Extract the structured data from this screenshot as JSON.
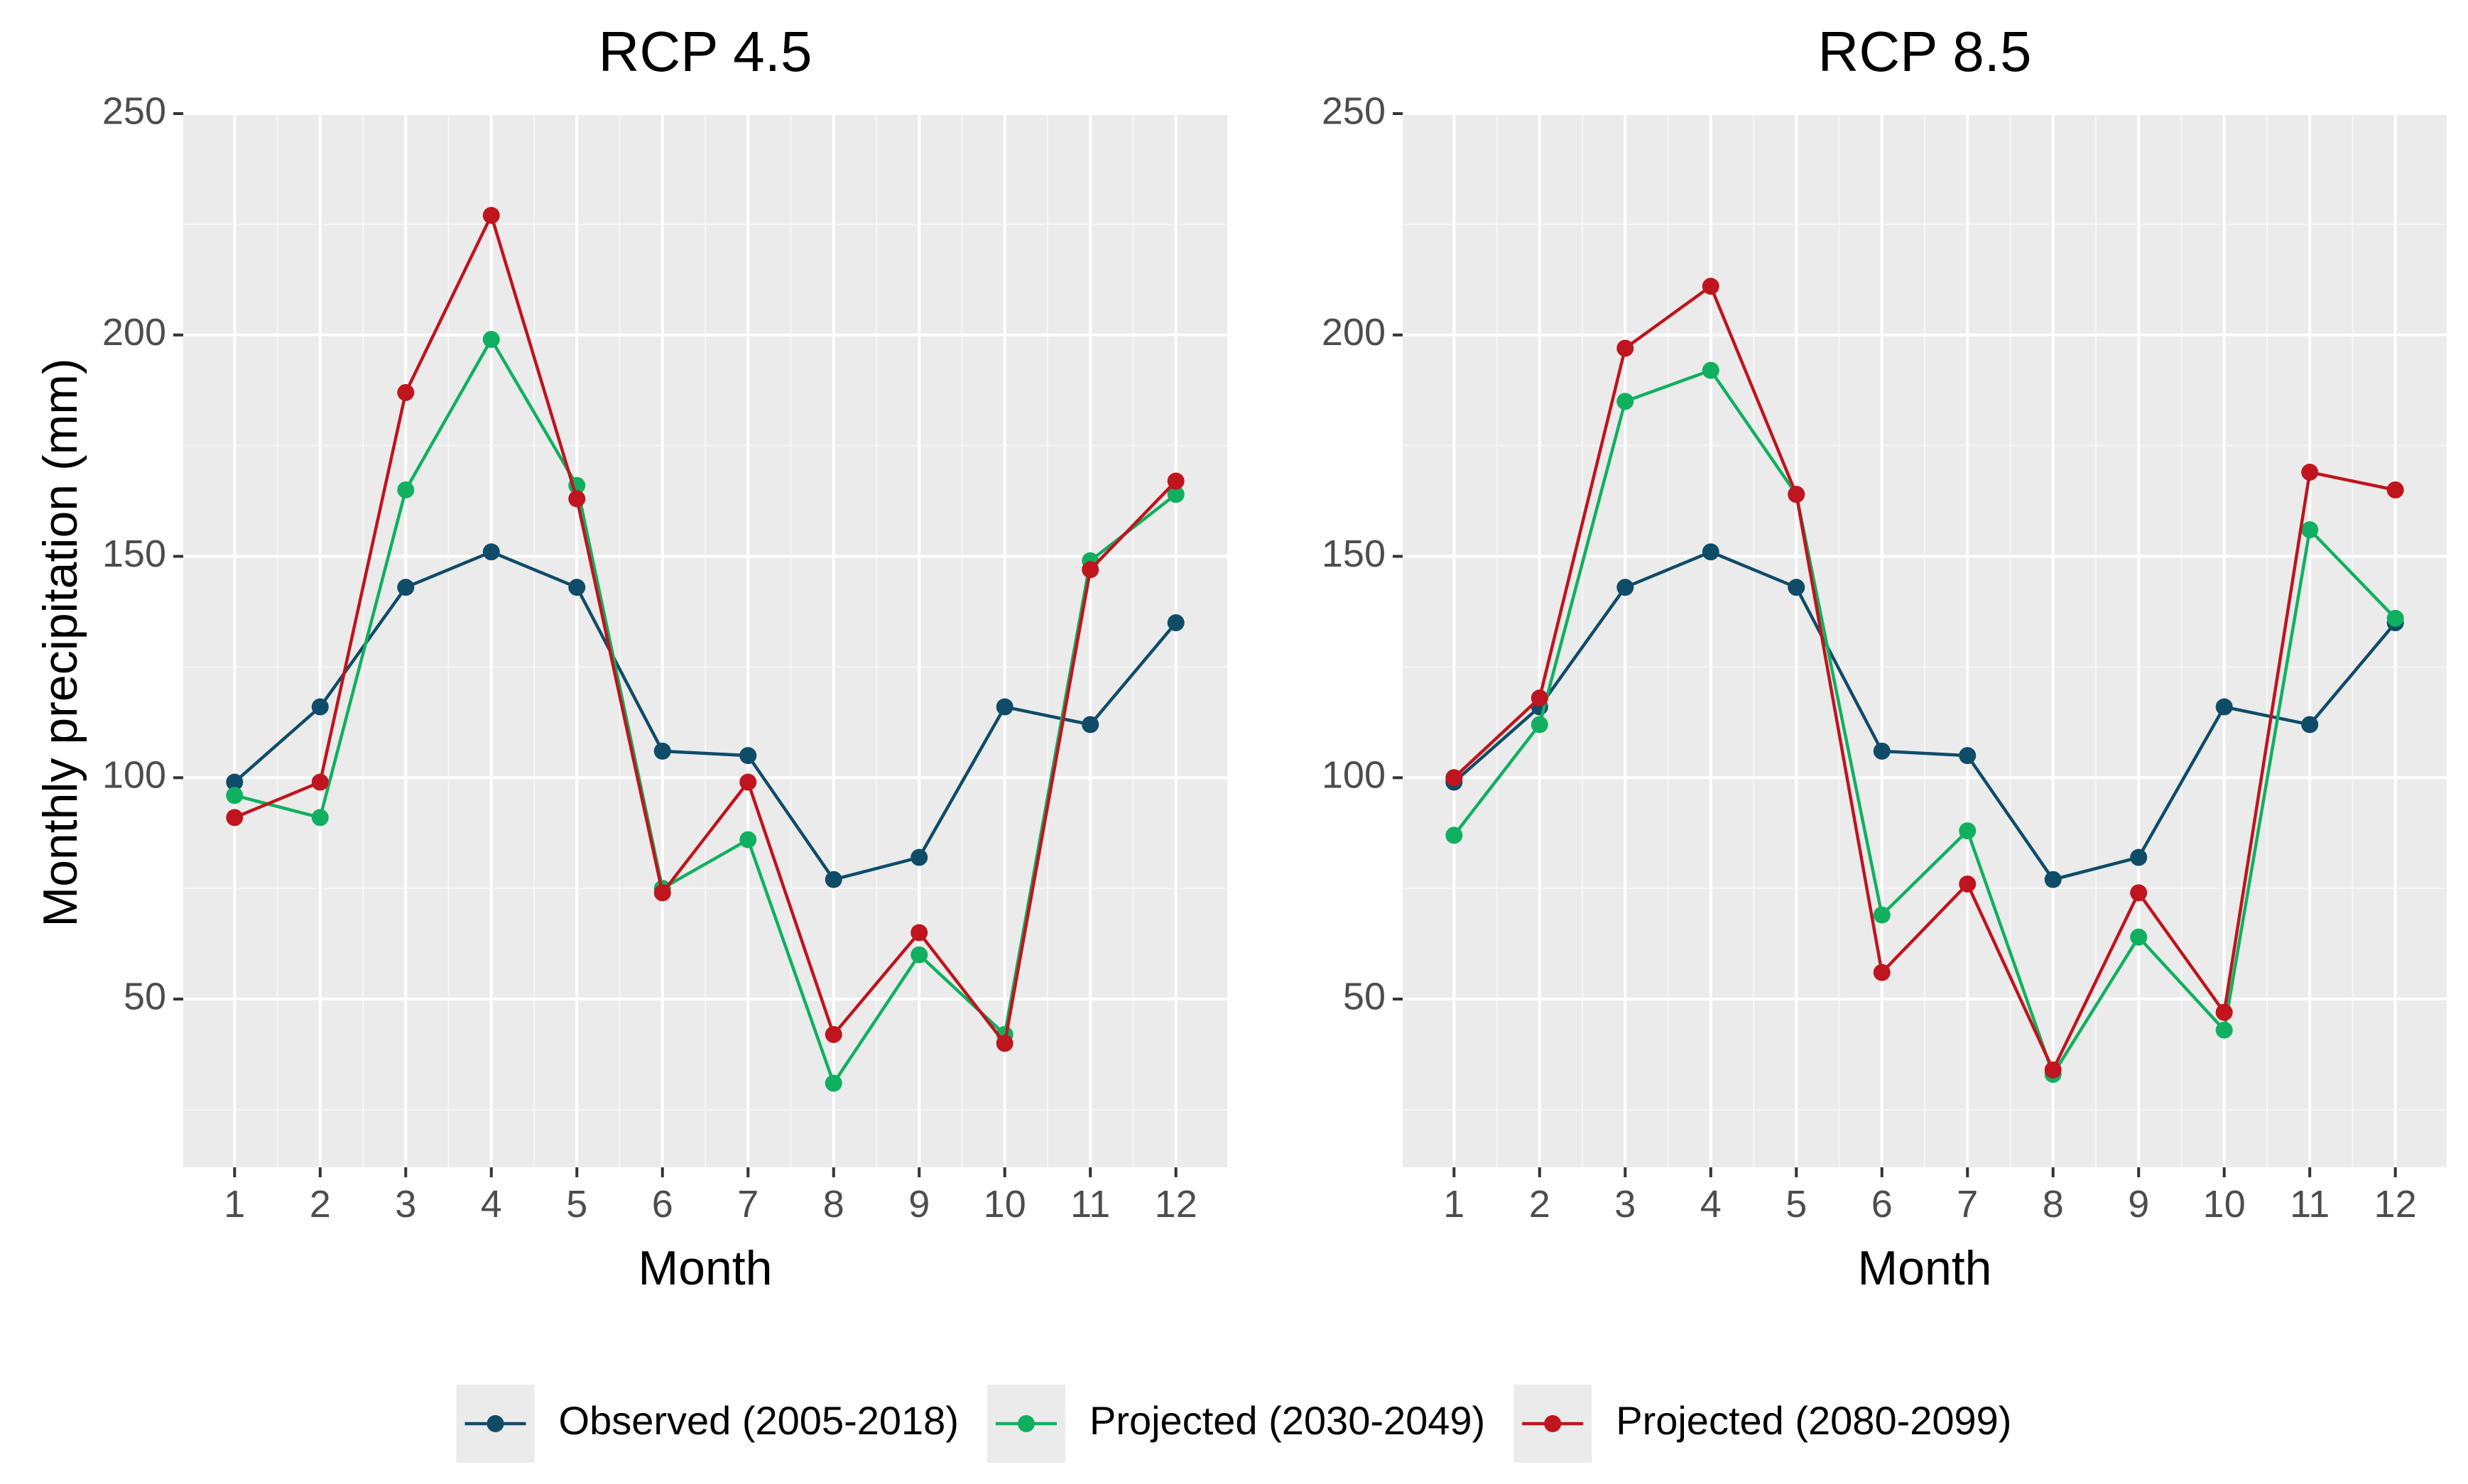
{
  "y_axis_label": "Monthly precipitation (mm)",
  "chart_data": [
    {
      "type": "line",
      "title": "RCP 4.5",
      "xlabel": "Month",
      "ylabel": "Monthly precipitation (mm)",
      "x": [
        1,
        2,
        3,
        4,
        5,
        6,
        7,
        8,
        9,
        10,
        11,
        12
      ],
      "x_tick_labels": [
        "1",
        "2",
        "3",
        "4",
        "5",
        "6",
        "7",
        "8",
        "9",
        "10",
        "11",
        "12"
      ],
      "y_ticks": [
        50,
        100,
        150,
        200,
        250
      ],
      "y_tick_labels": [
        "50",
        "100",
        "150",
        "200",
        "250"
      ],
      "ylim": [
        12,
        250
      ],
      "grid": true,
      "series": [
        {
          "name": "Observed (2005-2018)",
          "color": "#0f4c68",
          "values": [
            99,
            116,
            143,
            151,
            143,
            106,
            105,
            77,
            82,
            116,
            112,
            135
          ]
        },
        {
          "name": "Projected (2030-2049)",
          "color": "#10b060",
          "values": [
            96,
            91,
            165,
            199,
            166,
            75,
            86,
            31,
            60,
            42,
            149,
            164
          ]
        },
        {
          "name": "Projected (2080-2099)",
          "color": "#c0141e",
          "values": [
            91,
            99,
            187,
            227,
            163,
            74,
            99,
            42,
            65,
            40,
            147,
            167
          ]
        }
      ]
    },
    {
      "type": "line",
      "title": "RCP 8.5",
      "xlabel": "Month",
      "ylabel": "",
      "x": [
        1,
        2,
        3,
        4,
        5,
        6,
        7,
        8,
        9,
        10,
        11,
        12
      ],
      "x_tick_labels": [
        "1",
        "2",
        "3",
        "4",
        "5",
        "6",
        "7",
        "8",
        "9",
        "10",
        "11",
        "12"
      ],
      "y_ticks": [
        50,
        100,
        150,
        200,
        250
      ],
      "y_tick_labels": [
        "50",
        "100",
        "150",
        "200",
        "250"
      ],
      "ylim": [
        12,
        250
      ],
      "grid": true,
      "series": [
        {
          "name": "Observed (2005-2018)",
          "color": "#0f4c68",
          "values": [
            99,
            116,
            143,
            151,
            143,
            106,
            105,
            77,
            82,
            116,
            112,
            135
          ]
        },
        {
          "name": "Projected (2030-2049)",
          "color": "#10b060",
          "values": [
            87,
            112,
            185,
            192,
            164,
            69,
            88,
            33,
            64,
            43,
            156,
            136
          ]
        },
        {
          "name": "Projected (2080-2099)",
          "color": "#c0141e",
          "values": [
            100,
            118,
            197,
            211,
            164,
            56,
            76,
            34,
            74,
            47,
            169,
            165
          ]
        }
      ]
    }
  ],
  "legend": {
    "position": "bottom",
    "items": [
      {
        "label": "Observed (2005-2018)",
        "color": "#0f4c68"
      },
      {
        "label": "Projected (2030-2049)",
        "color": "#10b060"
      },
      {
        "label": "Projected (2080-2099)",
        "color": "#c0141e"
      }
    ]
  }
}
